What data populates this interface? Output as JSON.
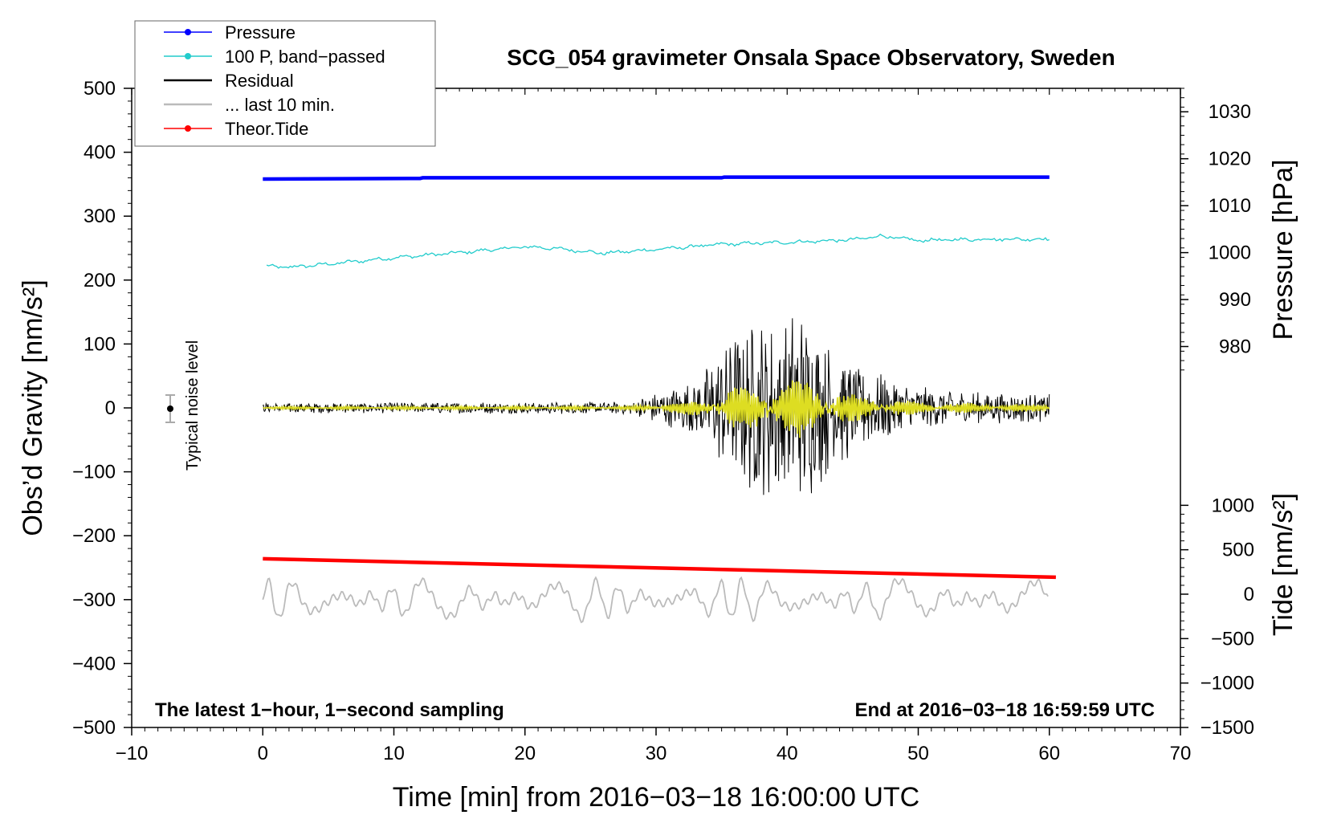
{
  "chart_data": {
    "type": "line",
    "title": "SCG_054 gravimeter Onsala Space Observatory, Sweden",
    "xlabel": "Time [min] from 2016−03−18 16:00:00 UTC",
    "ylabel_left": "Obs’d Gravity [nm/s²]",
    "ylabel_right_pressure": "Pressure [hPa]",
    "ylabel_right_tide": "Tide [nm/s²]",
    "xlim": [
      -10,
      70
    ],
    "ylim": [
      -500,
      500
    ],
    "x_ticks": [
      "−10",
      "0",
      "10",
      "20",
      "30",
      "40",
      "50",
      "60",
      "70"
    ],
    "y_ticks": [
      "500",
      "400",
      "300",
      "200",
      "100",
      "0",
      "−100",
      "−200",
      "−300",
      "−400",
      "−500"
    ],
    "pressure_axis": {
      "range": [
        970,
        1035
      ],
      "ticks": [
        "1030",
        "1020",
        "1010",
        "1000",
        "990",
        "980"
      ],
      "tick_values": [
        1030,
        1020,
        1010,
        1000,
        990,
        980
      ]
    },
    "tide_axis": {
      "range": [
        -1500,
        1500
      ],
      "ticks": [
        "1000",
        "500",
        "0",
        "−500",
        "−1000",
        "−1500"
      ],
      "tick_values": [
        1000,
        500,
        0,
        -500,
        -1000,
        -1500
      ]
    },
    "legend": [
      {
        "label": "Pressure",
        "color": "#0000ff",
        "marker": true
      },
      {
        "label": "100 P, band−passed",
        "color": "#22cccc",
        "marker": true
      },
      {
        "label": "Residual",
        "color": "#000000",
        "marker": false
      },
      {
        "label": "... last 10 min.",
        "color": "#bbbbbb",
        "marker": false
      },
      {
        "label": "Theor.Tide",
        "color": "#ff0000",
        "marker": true
      }
    ],
    "series": [
      {
        "name": "Pressure",
        "color": "#0000ff",
        "x": [
          0,
          12,
          12.2,
          35,
          35.2,
          60
        ],
        "y": [
          358,
          359,
          360,
          360,
          361,
          361
        ]
      },
      {
        "name": "100 P, band−passed",
        "color": "#22cccc",
        "x": [
          0,
          2,
          5,
          10,
          15,
          20,
          22,
          26,
          30,
          35,
          40,
          45,
          47,
          50,
          55,
          60
        ],
        "y": [
          222,
          220,
          225,
          235,
          243,
          252,
          250,
          242,
          248,
          256,
          259,
          263,
          269,
          262,
          264,
          264
        ]
      },
      {
        "name": "Residual",
        "color": "#000000",
        "amplitude_envelope": {
          "x": [
            0,
            28,
            30,
            33,
            36,
            38,
            40,
            41,
            43,
            46,
            50,
            55,
            60
          ],
          "y": [
            8,
            10,
            25,
            45,
            120,
            145,
            150,
            170,
            110,
            65,
            35,
            25,
            22
          ]
        }
      },
      {
        "name": "... last 10 min.",
        "color": "#bbbbbb",
        "center": -300,
        "amplitude": 30
      },
      {
        "name": "Theor.Tide",
        "color": "#ff0000",
        "x": [
          0,
          60.5
        ],
        "y": [
          -236,
          -265
        ]
      }
    ],
    "noise_marker": {
      "x": -7,
      "y": 0,
      "err": 20,
      "label": "Typical noise level"
    },
    "annotation_left": "The latest 1−hour, 1−second sampling",
    "annotation_right": "End at 2016−03−18 16:59:59 UTC"
  }
}
